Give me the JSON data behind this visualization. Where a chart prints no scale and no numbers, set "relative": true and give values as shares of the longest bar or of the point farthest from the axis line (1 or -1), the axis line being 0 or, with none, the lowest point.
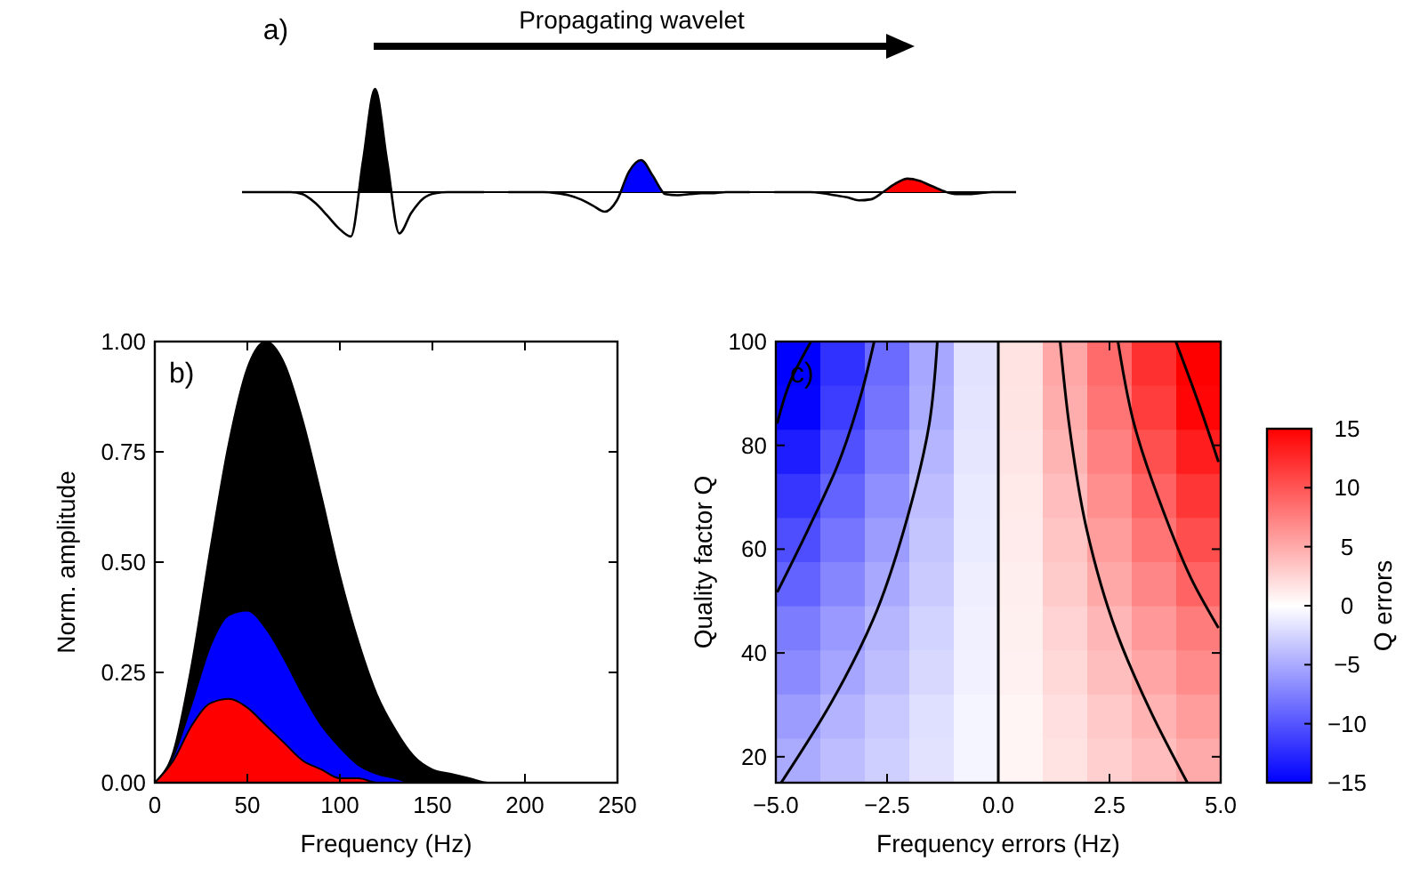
{
  "chart_data": [
    {
      "type": "line",
      "relative": true,
      "title": "a)",
      "annotations": [
        "Propagating wavelet"
      ],
      "categories": [
        null,
        null,
        null,
        null,
        null,
        null,
        null,
        null,
        null,
        null,
        null,
        null,
        null,
        null,
        null,
        null,
        null,
        null,
        null,
        null,
        null,
        null,
        null,
        null,
        null,
        null,
        null,
        null,
        null,
        null,
        null,
        null,
        null,
        null,
        null,
        null,
        null,
        null,
        null,
        null,
        null,
        null,
        null,
        null,
        null,
        null,
        null,
        null,
        null,
        null,
        null,
        null,
        null,
        null,
        null,
        null,
        null,
        null,
        null,
        null,
        null,
        null,
        null,
        null,
        null
      ],
      "series": [
        {
          "type": "area",
          "color": "#000000",
          "values": [
            null,
            null,
            null,
            null,
            null,
            null,
            null,
            null,
            null,
            -0.43,
            0.3,
            1,
            0.3,
            -0.4,
            null,
            null,
            null,
            null,
            null,
            null,
            null,
            null,
            null,
            null,
            null,
            null,
            null,
            null,
            null,
            null,
            null,
            null,
            null,
            null,
            null,
            null,
            null,
            null,
            null,
            null,
            null,
            null,
            null,
            null,
            null,
            null,
            null,
            null,
            null,
            null,
            null,
            null,
            null,
            null,
            null,
            null,
            null,
            null,
            null,
            null,
            null,
            null,
            null,
            null,
            null
          ]
        },
        {
          "type": "area",
          "color": "#0000ff",
          "values": [
            null,
            null,
            null,
            null,
            null,
            null,
            null,
            null,
            null,
            null,
            null,
            null,
            null,
            null,
            null,
            null,
            null,
            null,
            null,
            null,
            null,
            null,
            null,
            null,
            null,
            null,
            null,
            null,
            null,
            null,
            null,
            -0.08,
            0.2,
            0.31,
            0.15,
            -0.02,
            null,
            null,
            null,
            null,
            null,
            null,
            null,
            null,
            null,
            null,
            null,
            null,
            null,
            null,
            null,
            null,
            null,
            null,
            null,
            null,
            null,
            null,
            null,
            null,
            null,
            null,
            null,
            null,
            null
          ]
        },
        {
          "type": "area",
          "color": "#ff0000",
          "values": [
            null,
            null,
            null,
            null,
            null,
            null,
            null,
            null,
            null,
            null,
            null,
            null,
            null,
            null,
            null,
            null,
            null,
            null,
            null,
            null,
            null,
            null,
            null,
            null,
            null,
            null,
            null,
            null,
            null,
            null,
            null,
            null,
            null,
            null,
            null,
            null,
            null,
            null,
            null,
            null,
            null,
            null,
            null,
            null,
            null,
            null,
            null,
            null,
            null,
            null,
            null,
            null,
            null,
            0,
            0.08,
            0.13,
            0.11,
            0.06,
            0.01,
            -0.02,
            null,
            null,
            null,
            null,
            null
          ]
        },
        {
          "color": "#000000",
          "values": [
            0,
            0,
            0,
            0,
            0,
            -0.02,
            -0.1,
            -0.22,
            -0.35,
            -0.43,
            0.3,
            1,
            0.3,
            -0.4,
            -0.2,
            -0.06,
            -0.01,
            0,
            0,
            0,
            0,
            null,
            null,
            null,
            null,
            null,
            null,
            null,
            null,
            null,
            null,
            null,
            null,
            null,
            null,
            null,
            null,
            null,
            null,
            null,
            null,
            null,
            null,
            null,
            null,
            null,
            null,
            null,
            null,
            null,
            null,
            null,
            null,
            null,
            null,
            null,
            null,
            null,
            null,
            null,
            null,
            null,
            null,
            null,
            null
          ]
        },
        {
          "color": "#000000",
          "values": [
            null,
            null,
            null,
            null,
            null,
            null,
            null,
            null,
            null,
            null,
            null,
            null,
            null,
            null,
            null,
            null,
            null,
            null,
            null,
            null,
            null,
            null,
            0,
            0,
            0,
            0,
            -0.01,
            -0.03,
            -0.07,
            -0.13,
            -0.19,
            -0.08,
            0.2,
            0.31,
            0.15,
            -0.02,
            -0.03,
            -0.02,
            -0.01,
            -0.01,
            0,
            0,
            0,
            null,
            null,
            null,
            null,
            null,
            null,
            null,
            null,
            null,
            null,
            null,
            null,
            null,
            null,
            null,
            null,
            null,
            null,
            null,
            null,
            null,
            null
          ]
        },
        {
          "color": "#000000",
          "values": [
            null,
            null,
            null,
            null,
            null,
            null,
            null,
            null,
            null,
            null,
            null,
            null,
            null,
            null,
            null,
            null,
            null,
            null,
            null,
            null,
            null,
            null,
            null,
            null,
            null,
            null,
            null,
            null,
            null,
            null,
            null,
            null,
            null,
            null,
            null,
            null,
            null,
            null,
            null,
            null,
            null,
            null,
            null,
            null,
            0,
            0,
            0,
            0,
            -0.01,
            -0.03,
            -0.05,
            -0.08,
            -0.07,
            0,
            0.08,
            0.13,
            0.11,
            0.06,
            0.01,
            -0.02,
            -0.02,
            -0.01,
            0,
            0,
            0
          ]
        }
      ]
    },
    {
      "type": "area",
      "title": "b)",
      "xlabel": "Frequency (Hz)",
      "ylabel": "Norm. amplitude",
      "x": [
        0,
        10,
        20,
        30,
        40,
        50,
        60,
        70,
        80,
        90,
        100,
        110,
        120,
        130,
        140,
        150,
        160,
        170,
        180,
        190,
        200,
        250
      ],
      "series": [
        {
          "color": "#000000",
          "values": [
            0,
            0.07,
            0.27,
            0.53,
            0.77,
            0.94,
            1.0,
            0.95,
            0.82,
            0.65,
            0.47,
            0.32,
            0.2,
            0.12,
            0.06,
            0.03,
            0.02,
            0.01,
            0,
            0,
            0,
            0
          ]
        },
        {
          "color": "#0000ff",
          "values": [
            0,
            0.06,
            0.18,
            0.31,
            0.38,
            0.39,
            0.35,
            0.28,
            0.2,
            0.13,
            0.08,
            0.04,
            0.02,
            0.01,
            0,
            0,
            0,
            0,
            0,
            0,
            0,
            0
          ]
        },
        {
          "color": "#ff0000",
          "values": [
            0,
            0.05,
            0.13,
            0.18,
            0.19,
            0.17,
            0.13,
            0.09,
            0.05,
            0.03,
            0.01,
            0.01,
            0,
            0,
            0,
            0,
            0,
            0,
            0,
            0,
            0,
            0
          ]
        }
      ],
      "xlim": [
        0,
        250
      ],
      "xticks": [
        0,
        50,
        100,
        150,
        200,
        250
      ],
      "ylim": [
        0,
        1
      ],
      "yticks": [
        {
          "value": 0,
          "label": "0.00"
        },
        {
          "value": 0.25,
          "label": "0.25"
        },
        {
          "value": 0.5,
          "label": "0.50"
        },
        {
          "value": 0.75,
          "label": "0.75"
        },
        {
          "value": 1,
          "label": "1.00"
        }
      ]
    },
    {
      "type": "heatmap",
      "title": "c)",
      "xlabel": "Frequency errors (Hz)",
      "ylabel": "Quality factor Q",
      "clabel": "Q errors",
      "x": [
        -4.5,
        -3.5,
        -2.5,
        -1.5,
        -0.5,
        0.5,
        1.5,
        2.5,
        3.5,
        4.5
      ],
      "y": [
        95.75,
        87.25,
        78.75,
        70.25,
        61.75,
        53.25,
        44.75,
        36.25,
        27.75,
        19.25
      ],
      "cells": [
        [
          -15.7,
          -12.2,
          -8.7,
          -5.2,
          -1.7,
          1.7,
          5.2,
          8.7,
          12.2,
          15.7
        ],
        [
          -14.7,
          -11.4,
          -8.2,
          -4.9,
          -1.6,
          1.6,
          4.9,
          8.2,
          11.4,
          14.7
        ],
        [
          -13.3,
          -10.3,
          -7.4,
          -4.4,
          -1.5,
          1.5,
          4.4,
          7.4,
          10.3,
          13.3
        ],
        [
          -11.8,
          -9.2,
          -6.6,
          -3.9,
          -1.3,
          1.3,
          3.9,
          6.6,
          9.2,
          11.8
        ],
        [
          -10.4,
          -8.1,
          -5.8,
          -3.5,
          -1.2,
          1.2,
          3.5,
          5.8,
          8.1,
          10.4
        ],
        [
          -9.2,
          -7.1,
          -5.1,
          -3.1,
          -1.0,
          1.0,
          3.1,
          5.1,
          7.1,
          9.2
        ],
        [
          -7.7,
          -6.0,
          -4.3,
          -2.6,
          -0.9,
          0.9,
          2.6,
          4.3,
          6.0,
          7.7
        ],
        [
          -6.8,
          -5.3,
          -3.8,
          -2.3,
          -0.8,
          0.8,
          2.3,
          3.8,
          5.3,
          6.8
        ],
        [
          -5.8,
          -4.5,
          -3.2,
          -1.9,
          -0.6,
          0.6,
          1.9,
          3.2,
          4.5,
          5.8
        ],
        [
          -5.0,
          -3.9,
          -2.8,
          -1.7,
          -0.6,
          0.6,
          1.7,
          2.8,
          3.9,
          5.0
        ]
      ],
      "series": [
        {
          "type": "line",
          "color": "#000000",
          "x": [
            -4.97,
            -4.68,
            -4.21
          ],
          "values": [
            84.2,
            92.2,
            100
          ]
        },
        {
          "type": "line",
          "color": "#000000",
          "x": [
            -4.97,
            -4.28,
            -3.61,
            -3.08,
            -2.79
          ],
          "values": [
            51.7,
            63.7,
            76.2,
            89.9,
            100
          ]
        },
        {
          "type": "line",
          "color": "#000000",
          "x": [
            -4.88,
            -3.75,
            -2.81,
            -2.01,
            -1.55,
            -1.37
          ],
          "values": [
            15,
            30.5,
            46.5,
            67.1,
            84.2,
            100
          ]
        },
        {
          "type": "line",
          "color": "#000000",
          "x": [
            4.25,
            3.45,
            2.65,
            1.99,
            1.59,
            1.39
          ],
          "values": [
            15,
            28.3,
            44.2,
            63.7,
            84.2,
            100
          ]
        },
        {
          "type": "line",
          "color": "#000000",
          "x": [
            4.95,
            4.39,
            3.72,
            3.05,
            2.69
          ],
          "values": [
            44.8,
            53.4,
            67.1,
            84.2,
            100
          ]
        },
        {
          "type": "line",
          "color": "#000000",
          "x": [
            4.95,
            4.52,
            3.99
          ],
          "values": [
            76.8,
            87.7,
            100
          ]
        }
      ],
      "xlim": [
        -5,
        5
      ],
      "xticks": [
        {
          "value": -5,
          "label": "−5.0"
        },
        {
          "value": -2.5,
          "label": "−2.5"
        },
        {
          "value": 0,
          "label": "0.0"
        },
        {
          "value": 2.5,
          "label": "2.5"
        },
        {
          "value": 5,
          "label": "5.0"
        }
      ],
      "ref_lines": [
        {
          "axis": "x",
          "value": 0,
          "color": "#000000"
        }
      ],
      "ylim": [
        15,
        100
      ],
      "yticks": [
        20,
        40,
        60,
        80,
        100
      ],
      "clim": [
        -15,
        15
      ],
      "cticks": [
        {
          "value": -15,
          "label": "−15"
        },
        {
          "value": -10,
          "label": "−10"
        },
        {
          "value": -5,
          "label": "−5"
        },
        0,
        5,
        10,
        15
      ]
    }
  ]
}
